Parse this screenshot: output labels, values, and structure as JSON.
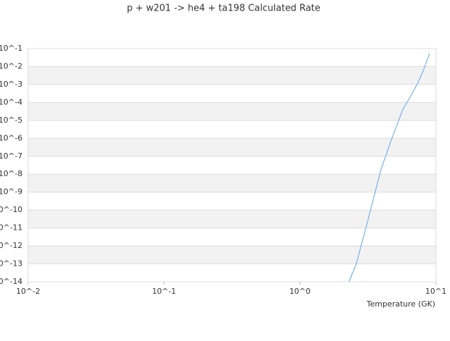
{
  "chart_data": {
    "type": "line",
    "title": "p + w201 -> he4 + ta198 Calculated Rate",
    "x_label": "Temperature (GK)",
    "x_scale": "log",
    "y_scale": "log",
    "grid": true,
    "xlim": [
      0.01,
      10
    ],
    "ylim": [
      1e-14,
      0.1
    ],
    "xticks": [
      {
        "value": 0.01,
        "label": "10^-2"
      },
      {
        "value": 0.1,
        "label": "10^-1"
      },
      {
        "value": 1,
        "label": "10^0"
      },
      {
        "value": 10,
        "label": "10^1"
      }
    ],
    "yticks": [
      {
        "value": 1e-14,
        "label": "10^-14"
      },
      {
        "value": 1e-13,
        "label": "10^-13"
      },
      {
        "value": 1e-12,
        "label": "10^-12"
      },
      {
        "value": 1e-11,
        "label": "10^-11"
      },
      {
        "value": 1e-10,
        "label": "10^-10"
      },
      {
        "value": 1e-09,
        "label": "10^-9"
      },
      {
        "value": 1e-08,
        "label": "10^-8"
      },
      {
        "value": 1e-07,
        "label": "10^-7"
      },
      {
        "value": 1e-06,
        "label": "10^-6"
      },
      {
        "value": 1e-05,
        "label": "10^-5"
      },
      {
        "value": 0.0001,
        "label": "10^-4"
      },
      {
        "value": 0.001,
        "label": "10^-3"
      },
      {
        "value": 0.01,
        "label": "10^-2"
      },
      {
        "value": 0.1,
        "label": "10^-1"
      }
    ],
    "x": [
      2.29,
      2.58,
      3.04,
      3.95,
      4.67,
      5.71,
      6.37,
      7.35,
      8.07,
      8.99
    ],
    "series": [
      {
        "color": "#5da5e8",
        "values": [
          1e-14,
          8.71e-14,
          8.91e-12,
          1.91e-08,
          7.24e-07,
          4.17e-05,
          0.000162,
          0.0012,
          0.00603,
          0.0537
        ]
      }
    ]
  }
}
